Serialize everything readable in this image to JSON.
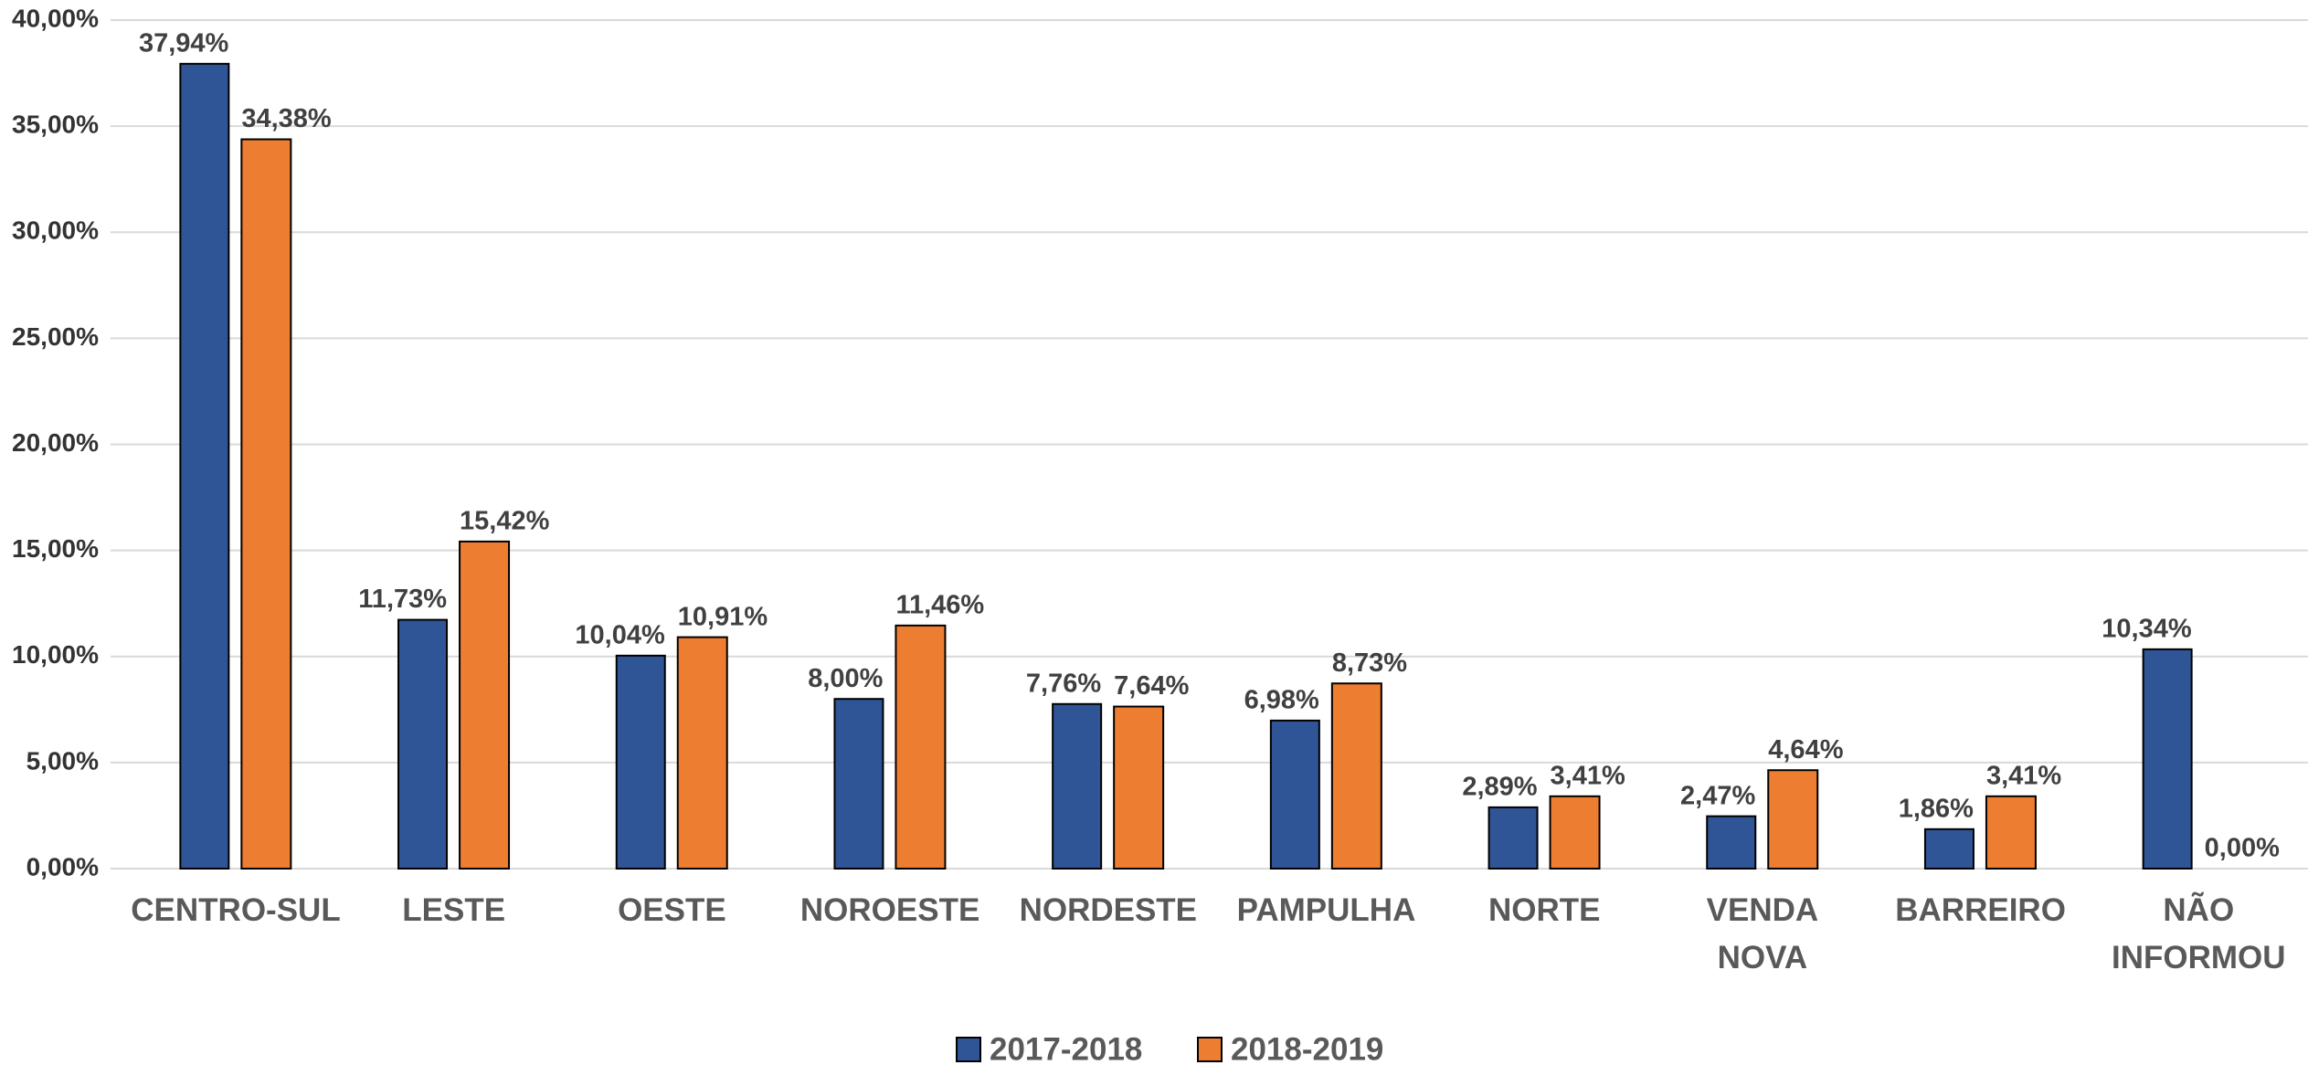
{
  "chart_data": {
    "type": "bar",
    "categories": [
      "CENTRO-SUL",
      "LESTE",
      "OESTE",
      "NOROESTE",
      "NORDESTE",
      "PAMPULHA",
      "NORTE",
      "VENDA\nNOVA",
      "BARREIRO",
      "NÃO\nINFORMOU"
    ],
    "series": [
      {
        "name": "2017-2018",
        "color": "#2f5597",
        "values": [
          37.94,
          11.73,
          10.04,
          8.0,
          7.76,
          6.98,
          2.89,
          2.47,
          1.86,
          10.34
        ],
        "value_labels": [
          "37,94%",
          "11,73%",
          "10,04%",
          "8,00%",
          "7,76%",
          "6,98%",
          "2,89%",
          "2,47%",
          "1,86%",
          "10,34%"
        ]
      },
      {
        "name": "2018-2019",
        "color": "#ed7d31",
        "values": [
          34.38,
          15.42,
          10.91,
          11.46,
          7.64,
          8.73,
          3.41,
          4.64,
          3.41,
          0.0
        ],
        "value_labels": [
          "34,38%",
          "15,42%",
          "10,91%",
          "11,46%",
          "7,64%",
          "8,73%",
          "3,41%",
          "4,64%",
          "3,41%",
          "0,00%"
        ]
      }
    ],
    "ylim": [
      0,
      40
    ],
    "yticks": [
      {
        "value": 0,
        "label": "0,00%"
      },
      {
        "value": 5,
        "label": "5,00%"
      },
      {
        "value": 10,
        "label": "10,00%"
      },
      {
        "value": 15,
        "label": "15,00%"
      },
      {
        "value": 20,
        "label": "20,00%"
      },
      {
        "value": 25,
        "label": "25,00%"
      },
      {
        "value": 30,
        "label": "30,00%"
      },
      {
        "value": 35,
        "label": "35,00%"
      },
      {
        "value": 40,
        "label": "40,00%"
      }
    ],
    "grid": true,
    "legend": "bottom"
  }
}
